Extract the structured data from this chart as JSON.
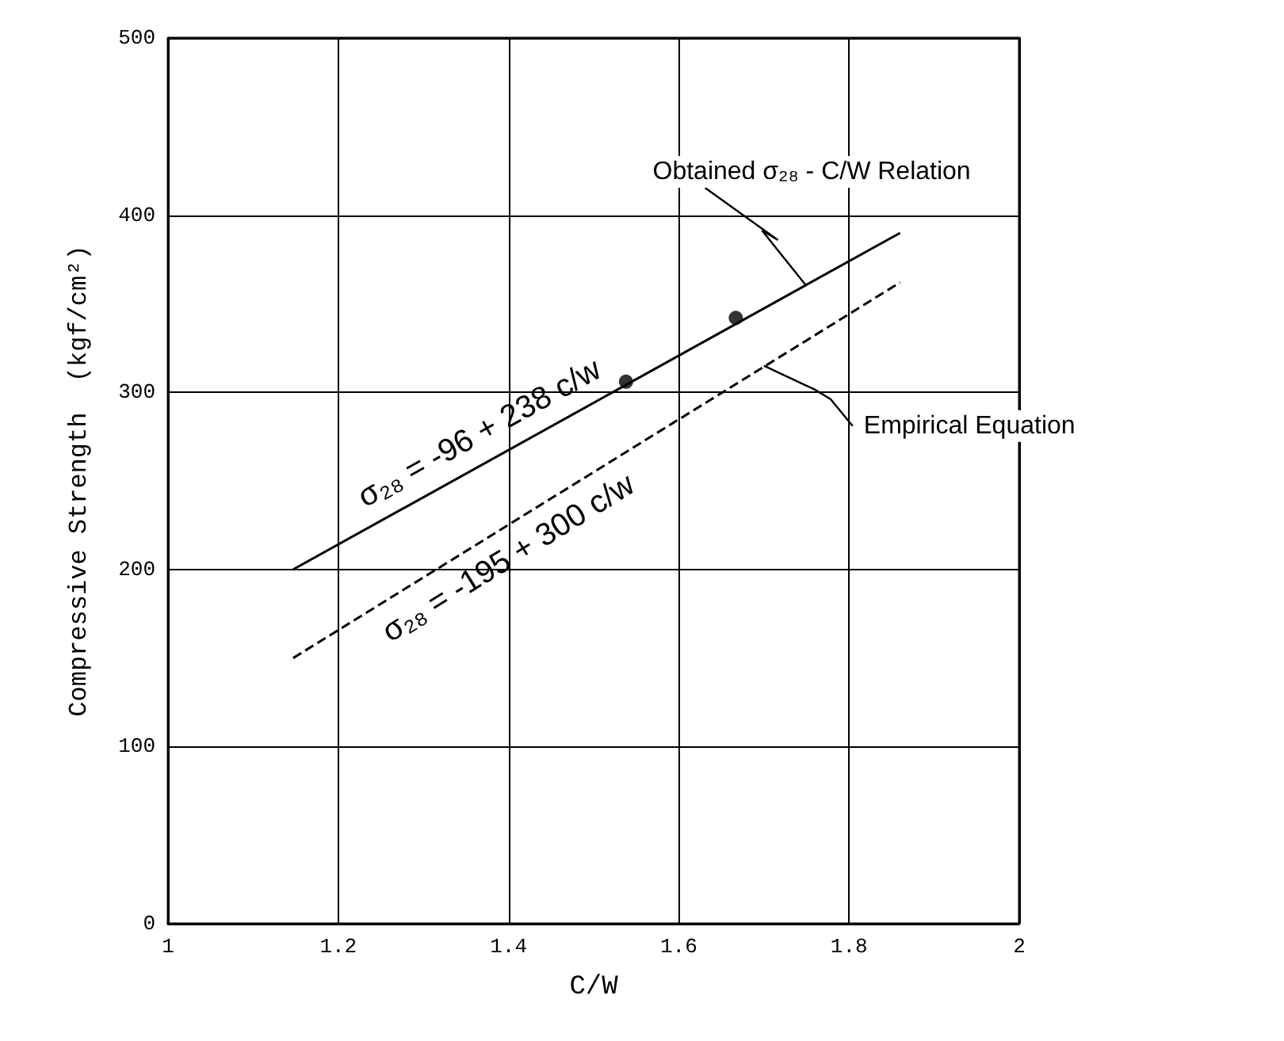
{
  "chart_data": {
    "type": "line",
    "xlabel": "C/W",
    "ylabel": "Compressive Strength  (kgf/cm²)",
    "xlim": [
      1,
      2
    ],
    "xticks": [
      1,
      1.2,
      1.4,
      1.6,
      1.8,
      2
    ],
    "ylim": [
      0,
      500
    ],
    "yticks": [
      0,
      100,
      200,
      300,
      400,
      500
    ],
    "grid": true,
    "series": [
      {
        "color": "#000000",
        "x": [
          1.147,
          1.86
        ],
        "values": [
          200,
          390
        ],
        "line_style": "solid",
        "marker": "none"
      },
      {
        "color": "#000000",
        "x": [
          1.147,
          1.86
        ],
        "values": [
          150,
          362
        ],
        "line_style": "dashed",
        "marker": "none"
      },
      {
        "type": "scatter",
        "color": "#000000",
        "x": [
          1.538,
          1.667
        ],
        "values": [
          306,
          342
        ],
        "marker": "circle"
      }
    ],
    "annotations": [
      "σ₂₈ = -96 + 238 c/w",
      "σ₂₈ = -195 + 300 c/w",
      {
        "text": "Obtained σ₂₈ - C/W Relation",
        "x": 1.75,
        "y": 360
      },
      {
        "text": "Empirical Equation",
        "x": 1.7,
        "y": 315
      }
    ]
  }
}
